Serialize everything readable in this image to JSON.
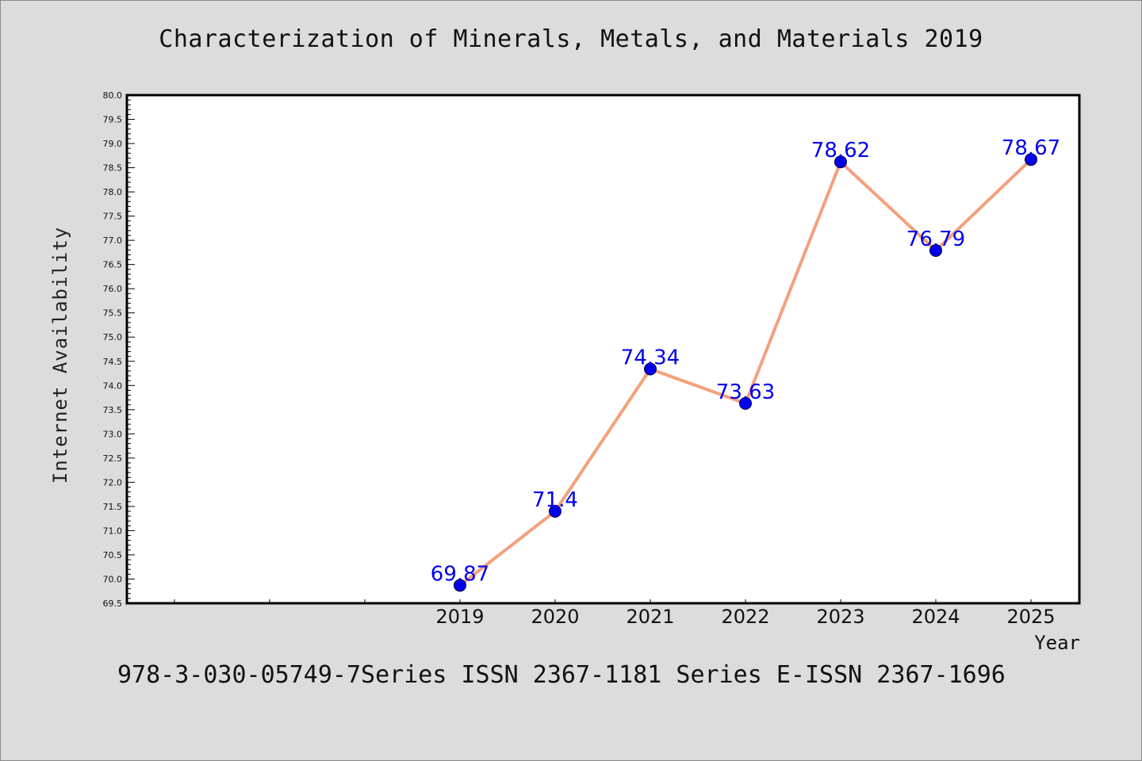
{
  "chart_data": {
    "type": "line",
    "title": "Characterization of Minerals, Metals, and Materials 2019",
    "xlabel": "Year",
    "ylabel": "Internet Availability",
    "categories": [
      "2019",
      "2020",
      "2021",
      "2022",
      "2023",
      "2024",
      "2025"
    ],
    "series": [
      {
        "values": [
          69.87,
          71.4,
          74.34,
          73.63,
          78.62,
          76.79,
          78.67
        ],
        "data_labels": [
          "69.87",
          "71.4",
          "74.34",
          "73.63",
          "78.62",
          "76.79",
          "78.67"
        ],
        "line_color": "#f4a07e",
        "marker_color": "#0000ee"
      }
    ],
    "ylim": [
      69.5,
      80.0
    ],
    "ytick_step": 0.5,
    "grid": false,
    "legend": "none"
  },
  "footer": {
    "text": "978-3-030-05749-7Series ISSN 2367-1181 Series E-ISSN 2367-1696"
  },
  "colors": {
    "background": "#dcdcdc",
    "plot_area": "#ffffff",
    "line": "#f4a07e",
    "markers": "#0000ee",
    "data_labels": "#0000ee"
  }
}
